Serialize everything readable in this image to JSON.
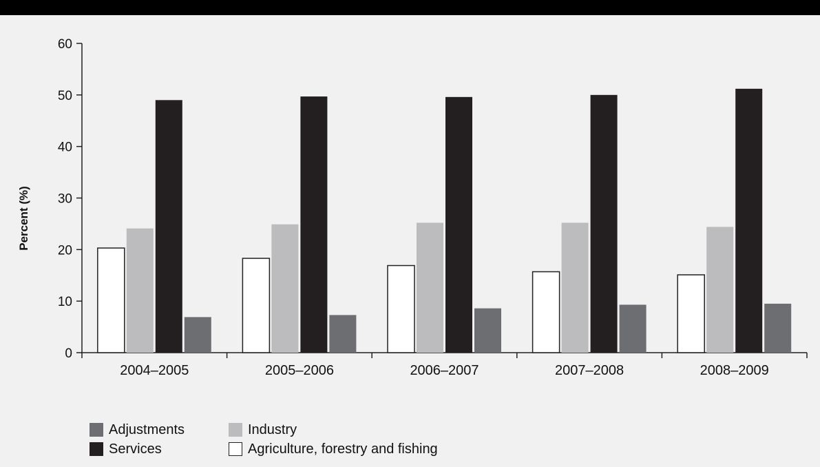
{
  "chart_data": {
    "type": "bar",
    "ylabel": "Percent (%)",
    "xlabel": "",
    "ylim": [
      0,
      60
    ],
    "yticks": [
      0,
      10,
      20,
      30,
      40,
      50,
      60
    ],
    "categories": [
      "2004–2005",
      "2005–2006",
      "2006–2007",
      "2007–2008",
      "2008–2009"
    ],
    "series": [
      {
        "name": "Agriculture, forestry and fishing",
        "color": "#ffffff",
        "values": [
          20.3,
          18.3,
          16.9,
          15.7,
          15.1
        ]
      },
      {
        "name": "Industry",
        "color": "#bcbcbe",
        "values": [
          24.1,
          24.9,
          25.2,
          25.2,
          24.4
        ]
      },
      {
        "name": "Services",
        "color": "#231f20",
        "values": [
          49.0,
          49.7,
          49.6,
          50.0,
          51.2
        ]
      },
      {
        "name": "Adjustments",
        "color": "#6d6e71",
        "values": [
          6.9,
          7.3,
          8.6,
          9.3,
          9.5
        ]
      }
    ],
    "legend_order": [
      "Adjustments",
      "Industry",
      "Services",
      "Agriculture, forestry and fishing"
    ],
    "grid": false,
    "legend_position": "bottom-left"
  }
}
